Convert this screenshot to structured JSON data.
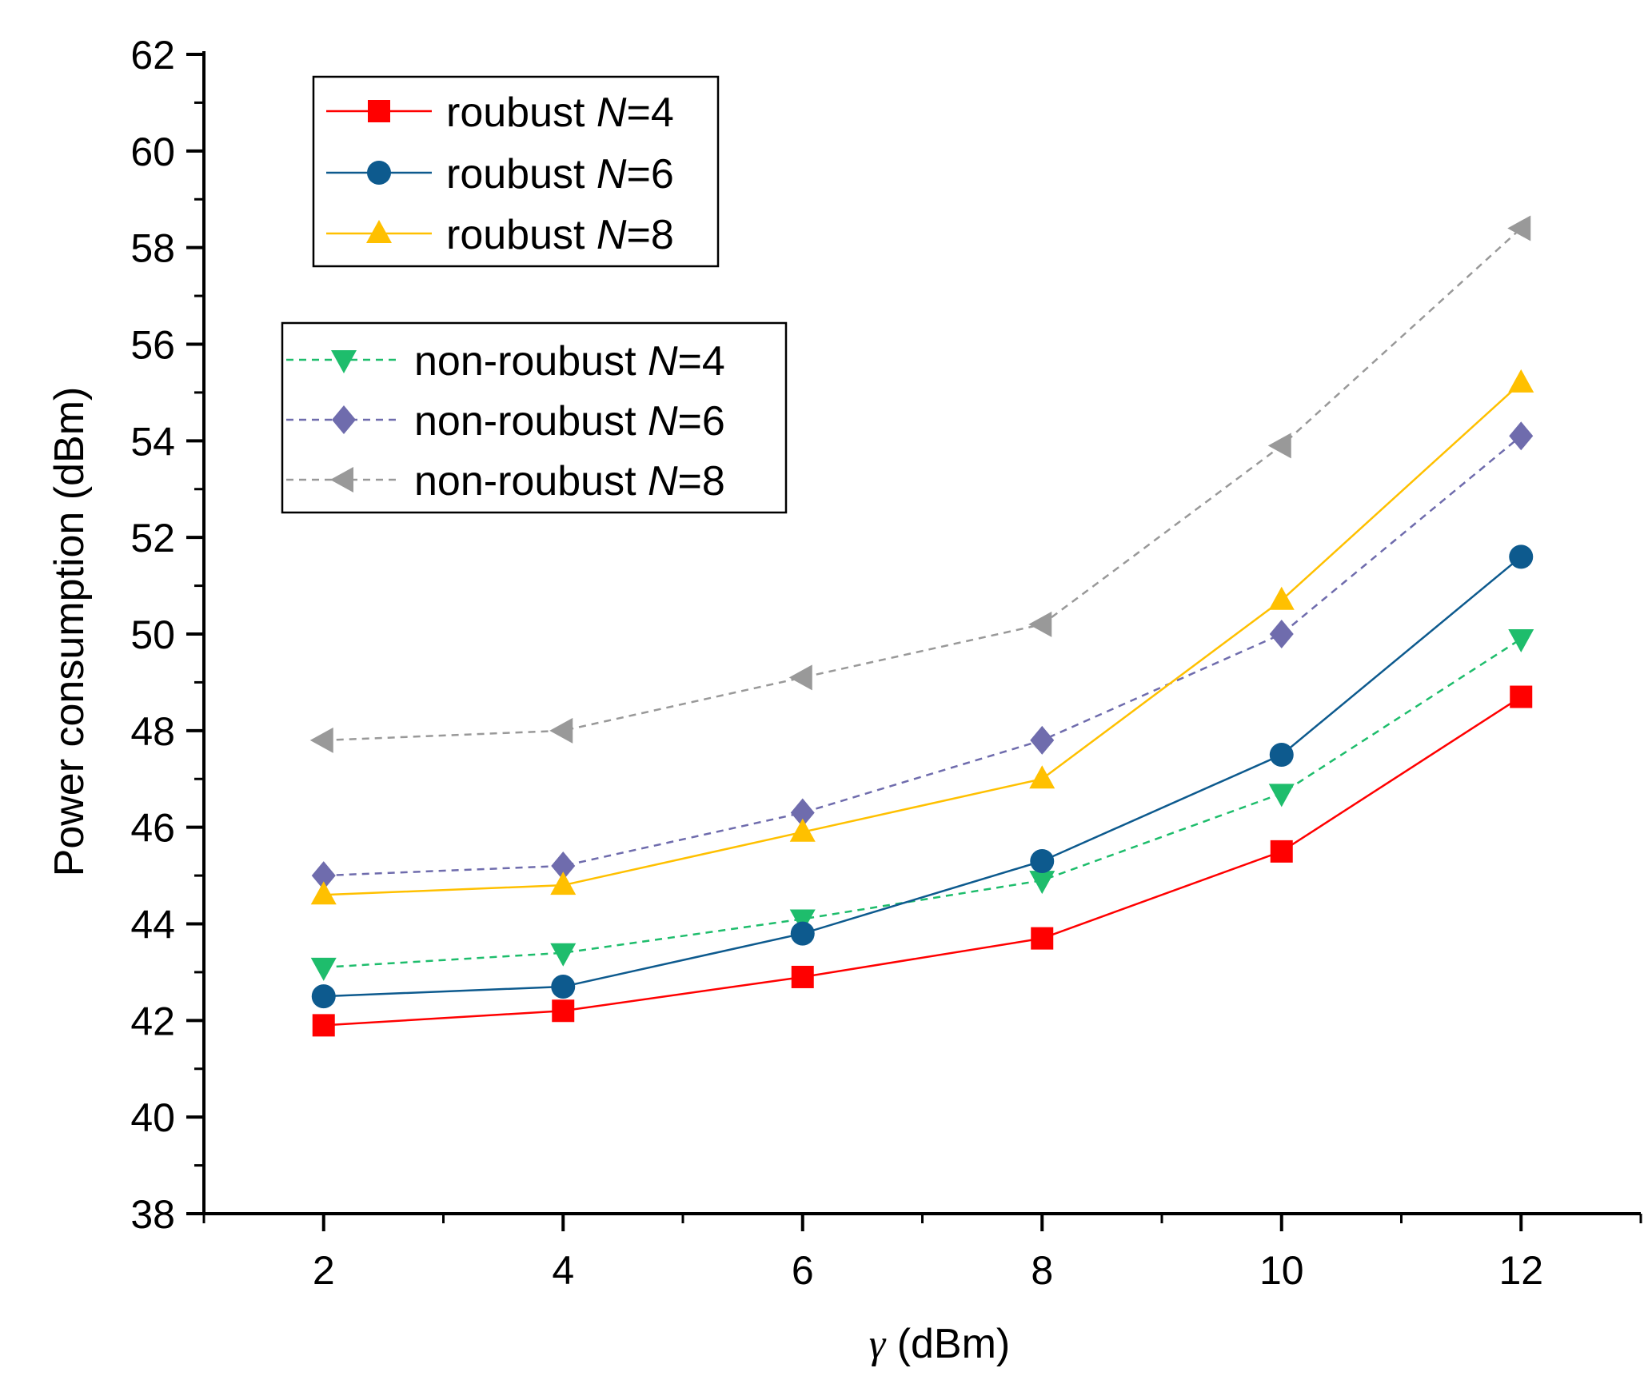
{
  "chart_data": {
    "type": "line",
    "title": "",
    "xlabel": {
      "symbol": "γ",
      "text": " (dBm)"
    },
    "ylabel": "Power consumption (dBm)",
    "xlim": [
      1,
      13
    ],
    "ylim": [
      38,
      62
    ],
    "x": [
      2,
      4,
      6,
      8,
      10,
      12
    ],
    "x_ticks": [
      "2",
      "4",
      "6",
      "8",
      "10",
      "12"
    ],
    "y_ticks": [
      "38",
      "40",
      "42",
      "44",
      "46",
      "48",
      "50",
      "52",
      "54",
      "56",
      "58",
      "60",
      "62"
    ],
    "grid": false,
    "series": [
      {
        "name": {
          "prefix": "roubust ",
          "var": "N",
          "suffix": "=4"
        },
        "legend_group": 0,
        "color": "#ff0000",
        "dashed": false,
        "marker": "square",
        "values": [
          41.9,
          42.2,
          42.9,
          43.7,
          45.5,
          48.7
        ]
      },
      {
        "name": {
          "prefix": "roubust ",
          "var": "N",
          "suffix": "=6"
        },
        "legend_group": 0,
        "color": "#0d5a8e",
        "dashed": false,
        "marker": "circle",
        "values": [
          42.5,
          42.7,
          43.8,
          45.3,
          47.5,
          51.6
        ]
      },
      {
        "name": {
          "prefix": "roubust ",
          "var": "N",
          "suffix": "=8"
        },
        "legend_group": 0,
        "color": "#ffc000",
        "dashed": false,
        "marker": "triangle-up",
        "values": [
          44.6,
          44.8,
          45.9,
          47.0,
          50.7,
          55.2
        ]
      },
      {
        "name": {
          "prefix": "non-roubust ",
          "var": "N",
          "suffix": "=4"
        },
        "legend_group": 1,
        "color": "#1ebd6c",
        "dashed": true,
        "marker": "triangle-down",
        "values": [
          43.1,
          43.4,
          44.1,
          44.9,
          46.7,
          49.9
        ]
      },
      {
        "name": {
          "prefix": "non-roubust ",
          "var": "N",
          "suffix": "=6"
        },
        "legend_group": 1,
        "color": "#6f6cad",
        "dashed": true,
        "marker": "diamond",
        "values": [
          45.0,
          45.2,
          46.3,
          47.8,
          50.0,
          54.1
        ]
      },
      {
        "name": {
          "prefix": "non-roubust ",
          "var": "N",
          "suffix": "=8"
        },
        "legend_group": 1,
        "color": "#999999",
        "dashed": true,
        "marker": "triangle-left",
        "values": [
          47.8,
          48.0,
          49.1,
          50.2,
          53.9,
          58.4
        ]
      }
    ],
    "legend_placement": "top-left, two boxes"
  }
}
